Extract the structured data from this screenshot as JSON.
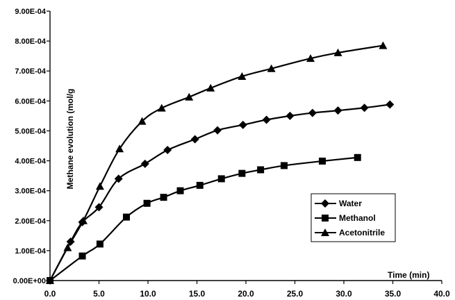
{
  "chart_data": {
    "type": "line",
    "title": "",
    "xlabel": "Time (min)",
    "ylabel": "Methane evolution (mol/g",
    "xlim": [
      0,
      40
    ],
    "ylim": [
      0,
      0.0009
    ],
    "x_ticks": [
      "0.0",
      "5.0",
      "10.0",
      "15.0",
      "20.0",
      "25.0",
      "30.0",
      "35.0",
      "40.0"
    ],
    "y_ticks": [
      "0.00E+00",
      "1.00E-04",
      "2.00E-04",
      "3.00E-04",
      "4.00E-04",
      "5.00E-04",
      "6.00E-04",
      "7.00E-04",
      "8.00E-04",
      "9.00E-04"
    ],
    "grid": false,
    "legend_position": "right",
    "color": "#000000",
    "series": [
      {
        "name": "Water",
        "marker": "diamond",
        "x": [
          0,
          2.1,
          3.3,
          5.0,
          7.0,
          9.7,
          12.0,
          14.8,
          17.1,
          19.7,
          22.1,
          24.5,
          26.8,
          29.4,
          32.1,
          34.7
        ],
        "y": [
          0,
          0.00013,
          0.000195,
          0.000245,
          0.00034,
          0.00039,
          0.000436,
          0.000472,
          0.000502,
          0.00052,
          0.000537,
          0.00055,
          0.00056,
          0.000568,
          0.000577,
          0.000588
        ]
      },
      {
        "name": "Methanol",
        "marker": "square",
        "x": [
          0,
          3.3,
          5.1,
          7.8,
          9.9,
          11.6,
          13.3,
          15.3,
          17.5,
          19.6,
          21.5,
          23.9,
          27.8,
          31.4
        ],
        "y": [
          0,
          8.2e-05,
          0.000122,
          0.000212,
          0.000258,
          0.000278,
          0.0003,
          0.000318,
          0.00034,
          0.000358,
          0.00037,
          0.000384,
          0.000399,
          0.000411
        ]
      },
      {
        "name": "Acetonitrile",
        "marker": "triangle",
        "x": [
          0,
          1.8,
          3.4,
          5.1,
          7.1,
          9.4,
          11.4,
          14.2,
          16.4,
          19.6,
          22.6,
          26.6,
          29.4,
          34.0
        ],
        "y": [
          0,
          0.00011,
          0.0002,
          0.000315,
          0.00044,
          0.000532,
          0.000576,
          0.000613,
          0.000643,
          0.000682,
          0.000708,
          0.000742,
          0.000761,
          0.000785
        ]
      }
    ]
  }
}
